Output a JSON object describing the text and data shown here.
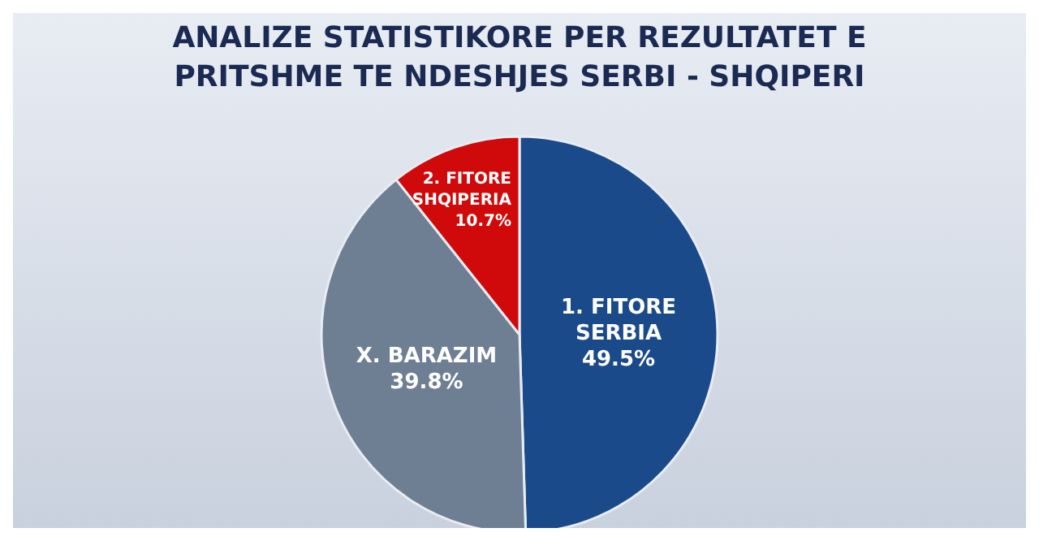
{
  "chart_data": {
    "type": "pie",
    "title": "ANALIZE STATISTIKORE PER REZULTATET E PRITSHME TE NDESHJES SERBI - SHQIPERI",
    "categories": [
      "1. FITORE SERBIA",
      "X. BARAZIM",
      "2. FITORE SHQIPERIA"
    ],
    "values": [
      49.5,
      39.8,
      10.7
    ],
    "colors": [
      "#1b4a8a",
      "#6e7f94",
      "#d00a0a"
    ],
    "value_labels": [
      "49.5%",
      "39.8%",
      "10.7%"
    ],
    "legend": false
  }
}
